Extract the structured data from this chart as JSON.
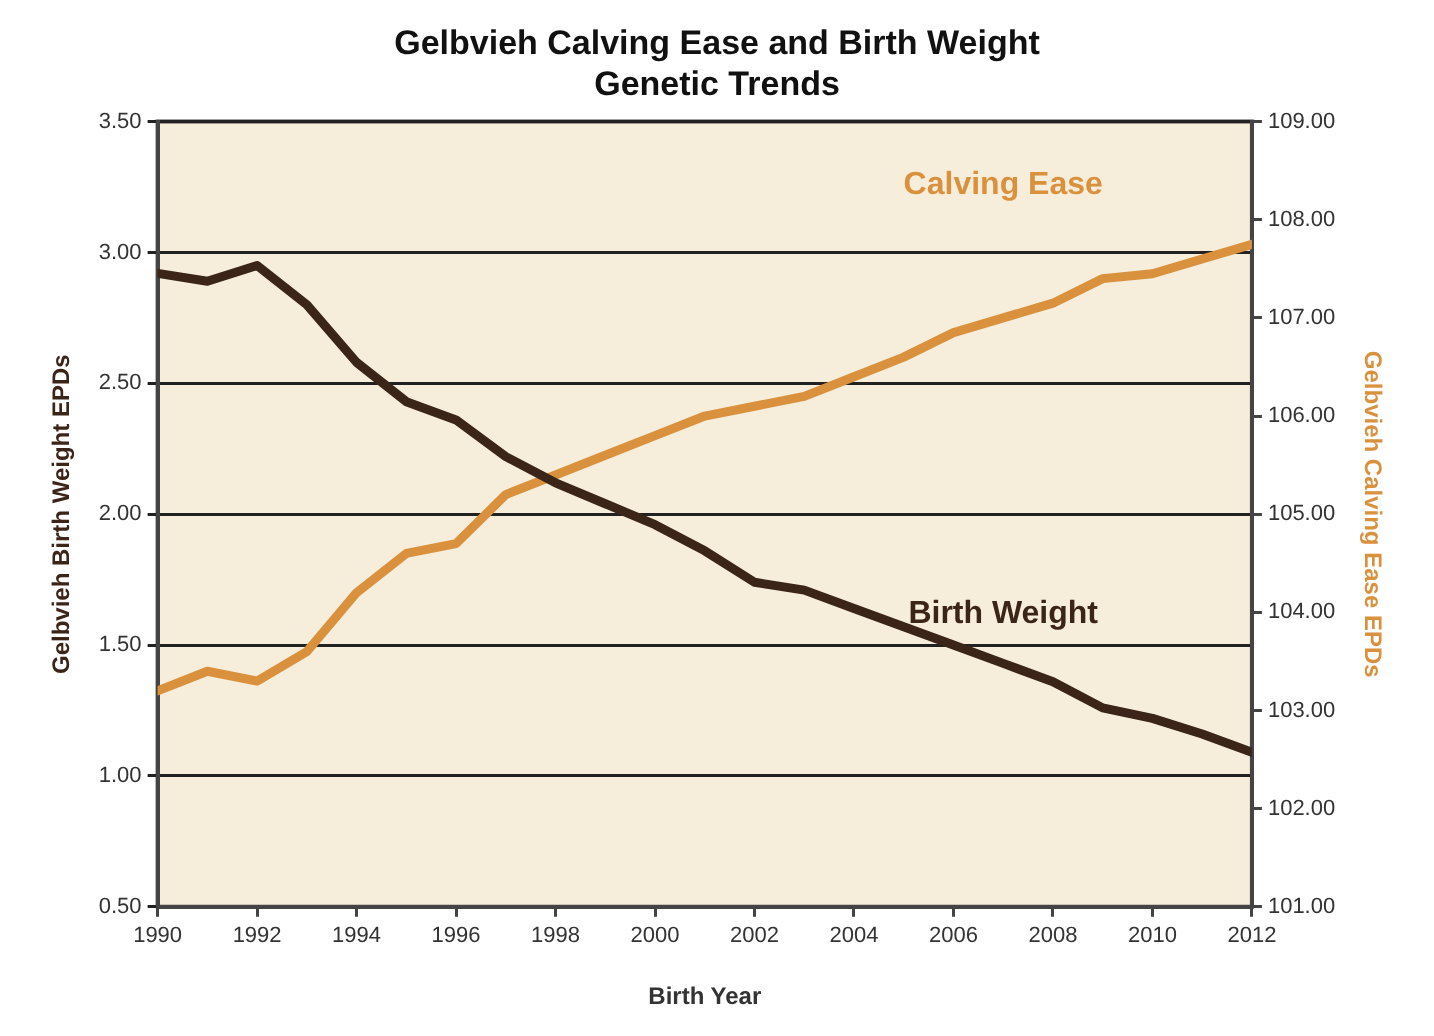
{
  "chart_data": {
    "type": "line",
    "title": "Gelbvieh Calving Ease and Birth Weight",
    "subtitle": "Genetic Trends",
    "xlabel": "Birth Year",
    "ylabel": "Gelbvieh Birth Weight EPDs",
    "y2label": "Gelbvieh Calving Ease EPDs",
    "x": [
      1990,
      1991,
      1992,
      1993,
      1994,
      1995,
      1996,
      1997,
      1998,
      1999,
      2000,
      2001,
      2002,
      2003,
      2004,
      2005,
      2006,
      2007,
      2008,
      2009,
      2010,
      2011,
      2012
    ],
    "series": [
      {
        "name": "Birth Weight",
        "color": "#3b2418",
        "values": [
          2.92,
          2.89,
          2.95,
          2.8,
          2.58,
          2.43,
          2.36,
          2.22,
          2.12,
          2.04,
          1.96,
          1.86,
          1.74,
          1.71,
          1.64,
          1.57,
          1.5,
          1.43,
          1.36,
          1.26,
          1.22,
          1.16,
          1.09
        ]
      },
      {
        "name": "Calving Ease",
        "color": "#d9913e",
        "axis": "y2",
        "values": [
          103.2,
          103.4,
          103.3,
          103.6,
          104.2,
          104.6,
          104.7,
          105.2,
          105.4,
          105.6,
          105.8,
          106,
          106.1,
          106.2,
          106.4,
          106.6,
          106.85,
          107,
          107.15,
          107.4,
          107.45,
          107.6,
          107.75
        ]
      }
    ],
    "xlim": [
      1990,
      2012
    ],
    "xticks": [
      1990,
      1992,
      1994,
      1996,
      1998,
      2000,
      2002,
      2004,
      2006,
      2008,
      2010,
      2012
    ],
    "ylim": [
      0.5,
      3.5
    ],
    "yticks": [
      {
        "value": 0.5,
        "label": "0.50"
      },
      {
        "value": 1,
        "label": "1.00"
      },
      {
        "value": 1.5,
        "label": "1.50"
      },
      {
        "value": 2,
        "label": "2.00"
      },
      {
        "value": 2.5,
        "label": "2.50"
      },
      {
        "value": 3,
        "label": "3.00"
      },
      {
        "value": 3.5,
        "label": "3.50"
      }
    ],
    "y2lim": [
      101,
      109
    ],
    "y2ticks": [
      {
        "value": 101,
        "label": "101.00"
      },
      {
        "value": 102,
        "label": "102.00"
      },
      {
        "value": 103,
        "label": "103.00"
      },
      {
        "value": 104,
        "label": "104.00"
      },
      {
        "value": 105,
        "label": "105.00"
      },
      {
        "value": 106,
        "label": "106.00"
      },
      {
        "value": 107,
        "label": "107.00"
      },
      {
        "value": 108,
        "label": "108.00"
      },
      {
        "value": 109,
        "label": "109.00"
      }
    ],
    "grid": "y",
    "legend": false,
    "marker": "none",
    "line_style": "solid"
  }
}
